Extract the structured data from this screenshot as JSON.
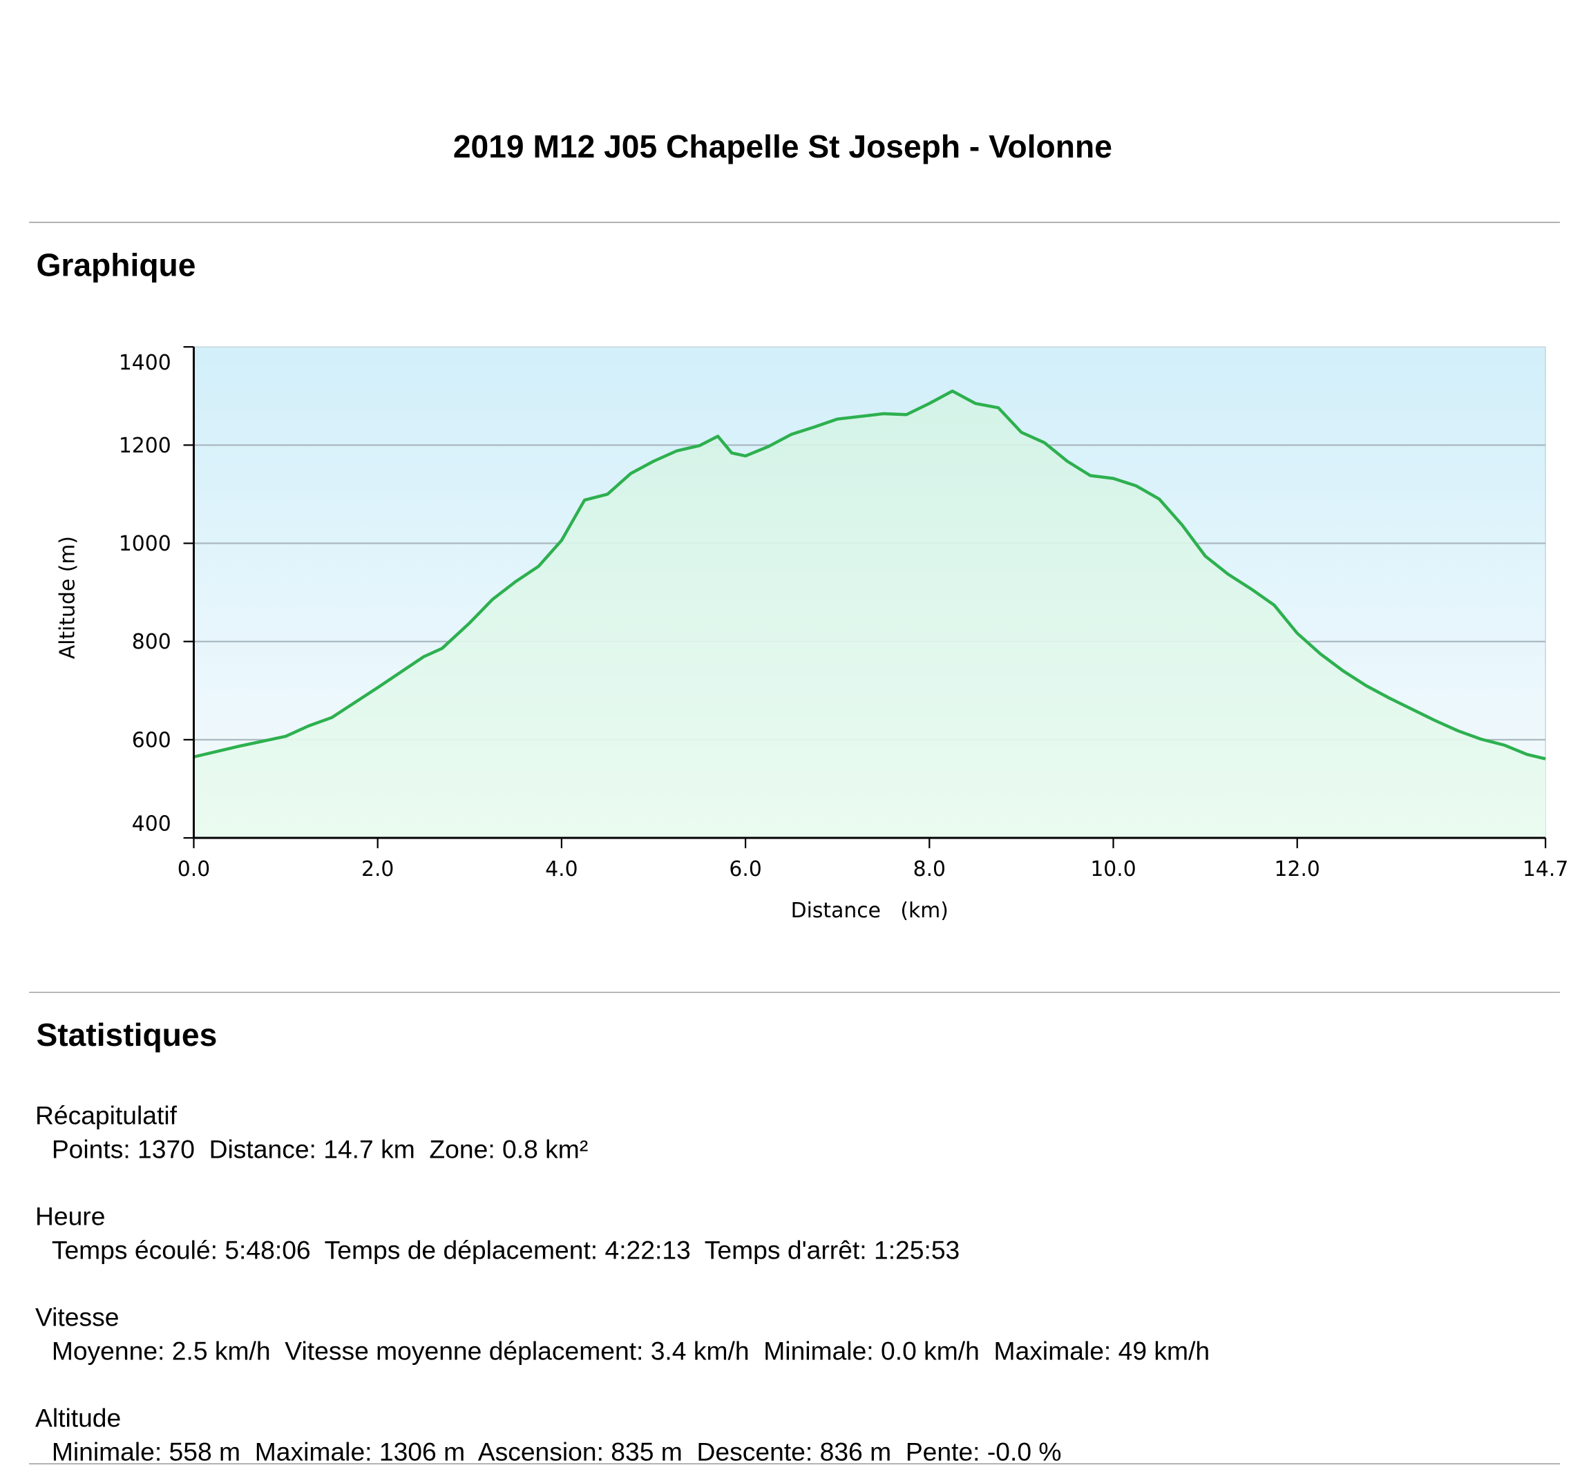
{
  "title": "2019 M12 J05 Chapelle St Joseph - Volonne",
  "graph_heading": "Graphique",
  "chart_data": {
    "type": "line",
    "xlabel": "Distance   (km)",
    "ylabel": "Altitude (m)",
    "x": [
      0,
      0.5,
      1.0,
      1.25,
      1.5,
      2.0,
      2.5,
      2.7,
      3.0,
      3.25,
      3.5,
      3.75,
      4.0,
      4.25,
      4.5,
      4.75,
      5.0,
      5.25,
      5.5,
      5.7,
      5.85,
      6.0,
      6.25,
      6.5,
      6.75,
      7.0,
      7.5,
      7.75,
      8.0,
      8.25,
      8.5,
      8.75,
      9.0,
      9.25,
      9.5,
      9.75,
      10.0,
      10.25,
      10.5,
      10.75,
      11.0,
      11.25,
      11.5,
      11.75,
      12.0,
      12.25,
      12.5,
      12.75,
      13.0,
      13.5,
      13.75,
      14.0,
      14.25,
      14.5,
      14.7
    ],
    "series": [
      {
        "color": "#2db04f",
        "values": [
          565,
          587,
          607,
          628,
          645,
          706,
          769,
          786,
          838,
          886,
          922,
          953,
          1006,
          1088,
          1100,
          1142,
          1167,
          1188,
          1199,
          1218,
          1184,
          1178,
          1197,
          1222,
          1237,
          1253,
          1264,
          1262,
          1285,
          1310,
          1285,
          1276,
          1226,
          1205,
          1167,
          1138,
          1132,
          1117,
          1090,
          1037,
          974,
          937,
          907,
          874,
          817,
          775,
          740,
          710,
          685,
          639,
          618,
          601,
          589,
          570,
          561
        ]
      }
    ],
    "xlim": [
      0,
      14.7
    ],
    "xticks": [
      {
        "value": 0,
        "label": "0.0"
      },
      {
        "value": 2,
        "label": "2.0"
      },
      {
        "value": 4,
        "label": "4.0"
      },
      {
        "value": 6,
        "label": "6.0"
      },
      {
        "value": 8,
        "label": "8.0"
      },
      {
        "value": 10,
        "label": "10.0"
      },
      {
        "value": 12,
        "label": "12.0"
      },
      14.7
    ],
    "ylim": [
      400,
      1400
    ],
    "yticks": [
      400,
      600,
      800,
      1000,
      1200,
      1400
    ],
    "grid": true
  },
  "stats_heading": "Statistiques",
  "stats": [
    {
      "heading": "Récapitulatif",
      "line": "Points: 1370  Distance: 14.7 km  Zone: 0.8 km²"
    },
    {
      "heading": "Heure",
      "line": "Temps écoulé: 5:48:06  Temps de déplacement: 4:22:13  Temps d'arrêt: 1:25:53"
    },
    {
      "heading": "Vitesse",
      "line": "Moyenne: 2.5 km/h  Vitesse moyenne déplacement: 3.4 km/h  Minimale: 0.0 km/h  Maximale: 49 km/h"
    },
    {
      "heading": "Altitude",
      "line": "Minimale: 558 m  Maximale: 1306 m  Ascension: 835 m  Descente: 836 m  Pente: -0.0 %"
    }
  ]
}
